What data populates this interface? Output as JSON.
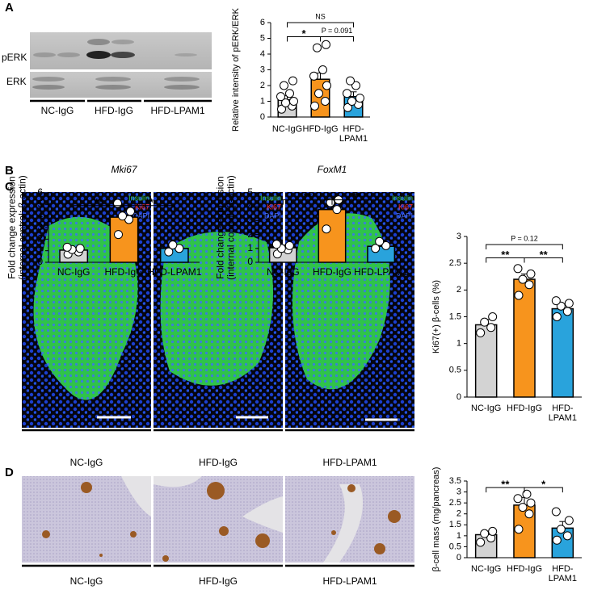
{
  "panels": [
    "A",
    "B",
    "C",
    "D"
  ],
  "blot": {
    "rows": [
      "pERK",
      "ERK"
    ],
    "lanes": [
      "NC-IgG",
      "HFD-IgG",
      "HFD-LPAM1"
    ]
  },
  "stain_images": {
    "legend": [
      "Insulin",
      "Ki67",
      "DAPI"
    ],
    "labels": [
      "NC-IgG",
      "HFD-IgG",
      "HFD-LPAM1"
    ]
  },
  "mass_images": {
    "labels": [
      "NC-IgG",
      "HFD-IgG",
      "HFD-LPAM1"
    ]
  },
  "chart_data": [
    {
      "type": "bar",
      "ylabel": "Relative intensity of pERK/ERK",
      "categories": [
        "NC-IgG",
        "HFD-IgG",
        "HFD-\nLPAM1"
      ],
      "colors": [
        "#d3d3d3",
        "#f7941d",
        "#29a3dc"
      ],
      "values": [
        1.1,
        2.4,
        1.3
      ],
      "errors": [
        0.25,
        0.4,
        0.3
      ],
      "points": [
        [
          0.5,
          0.7,
          0.9,
          1.0,
          1.3,
          1.5,
          2.0,
          2.3
        ],
        [
          0.7,
          1.0,
          1.5,
          2.0,
          2.6,
          3.0,
          4.4,
          4.6
        ],
        [
          0.6,
          0.8,
          1.0,
          1.2,
          1.5,
          2.0,
          2.3
        ]
      ],
      "ylim": [
        0,
        6
      ],
      "yticks": [
        0,
        1,
        2,
        3,
        4,
        5,
        6
      ],
      "annotations": [
        {
          "between": [
            0,
            2
          ],
          "y": 6.0,
          "text": "NS"
        },
        {
          "between": [
            0,
            1
          ],
          "y": 5.1,
          "text": "*"
        },
        {
          "between": [
            1,
            2
          ],
          "y": 5.1,
          "text": "P = 0.091"
        }
      ]
    },
    {
      "type": "bar",
      "title": "Mki67",
      "ylabel": "Fold change expression\n(internal control: β-actin)",
      "categories": [
        "NC-IgG",
        "HFD-IgG",
        "HFD-LPAM1"
      ],
      "colors": [
        "#d3d3d3",
        "#f7941d",
        "#29a3dc"
      ],
      "values": [
        1.05,
        3.9,
        1.2
      ],
      "errors": [
        0.2,
        0.5,
        0.2
      ],
      "points": [
        [
          0.7,
          0.9,
          1.1,
          1.2,
          1.3
        ],
        [
          2.4,
          3.7,
          4.0,
          4.4,
          5.1
        ],
        [
          0.9,
          1.2,
          1.5
        ]
      ],
      "ylim": [
        0,
        6
      ],
      "yticks": [
        0,
        1,
        2,
        3,
        4,
        5,
        6
      ],
      "annotations": [
        {
          "between": [
            0,
            1
          ],
          "y": 4.9,
          "text": "**"
        },
        {
          "between": [
            1,
            2
          ],
          "y": 4.9,
          "text": "**"
        }
      ]
    },
    {
      "type": "bar",
      "title": "FoxM1",
      "ylabel": "Fold change expression\n(internal control: β-actin)",
      "categories": [
        "NC-IgG",
        "HFD-IgG",
        "HFD-LPAM1"
      ],
      "colors": [
        "#d3d3d3",
        "#f7941d",
        "#29a3dc"
      ],
      "values": [
        1.05,
        3.8,
        1.15
      ],
      "errors": [
        0.2,
        0.5,
        0.15
      ],
      "points": [
        [
          0.6,
          0.9,
          1.0,
          1.2,
          1.3
        ],
        [
          2.4,
          3.8,
          4.3,
          4.5
        ],
        [
          1.0,
          1.2,
          1.5
        ]
      ],
      "ylim": [
        0,
        5
      ],
      "yticks": [
        0,
        1,
        2,
        3,
        4,
        5
      ],
      "annotations": [
        {
          "between": [
            0,
            1
          ],
          "y": 4.5,
          "text": "**"
        },
        {
          "between": [
            1,
            2
          ],
          "y": 4.5,
          "text": "**"
        }
      ]
    },
    {
      "type": "bar",
      "ylabel": "Ki67(+) β-cells (%)",
      "categories": [
        "NC-IgG",
        "HFD-IgG",
        "HFD-\nLPAM1"
      ],
      "colors": [
        "#d3d3d3",
        "#f7941d",
        "#29a3dc"
      ],
      "values": [
        1.35,
        2.2,
        1.65
      ],
      "errors": [
        0.1,
        0.1,
        0.08
      ],
      "points": [
        [
          1.2,
          1.3,
          1.4,
          1.5
        ],
        [
          1.9,
          2.1,
          2.2,
          2.3,
          2.4
        ],
        [
          1.5,
          1.6,
          1.7,
          1.75,
          1.8
        ]
      ],
      "ylim": [
        0,
        3
      ],
      "yticks": [
        0,
        0.5,
        1,
        1.5,
        2,
        2.5,
        3
      ],
      "annotations": [
        {
          "between": [
            0,
            2
          ],
          "y": 2.85,
          "text": "P = 0.12"
        },
        {
          "between": [
            0,
            1
          ],
          "y": 2.6,
          "text": "**"
        },
        {
          "between": [
            1,
            2
          ],
          "y": 2.6,
          "text": "**"
        }
      ]
    },
    {
      "type": "bar",
      "ylabel": "β-cell mass (mg/pancreas)",
      "categories": [
        "NC-IgG",
        "HFD-IgG",
        "HFD-\nLPAM1"
      ],
      "colors": [
        "#d3d3d3",
        "#f7941d",
        "#29a3dc"
      ],
      "values": [
        1.05,
        2.4,
        1.35
      ],
      "errors": [
        0.15,
        0.35,
        0.3
      ],
      "points": [
        [
          0.7,
          0.9,
          1.1,
          1.2
        ],
        [
          1.3,
          2.0,
          2.3,
          2.5,
          2.7,
          2.9
        ],
        [
          0.8,
          1.0,
          1.3,
          1.7,
          2.1
        ]
      ],
      "ylim": [
        0,
        3.5
      ],
      "yticks": [
        0,
        0.5,
        1,
        1.5,
        2,
        2.5,
        3,
        3.5
      ],
      "annotations": [
        {
          "between": [
            0,
            1
          ],
          "y": 3.2,
          "text": "**"
        },
        {
          "between": [
            1,
            2
          ],
          "y": 3.2,
          "text": "*"
        }
      ]
    }
  ]
}
